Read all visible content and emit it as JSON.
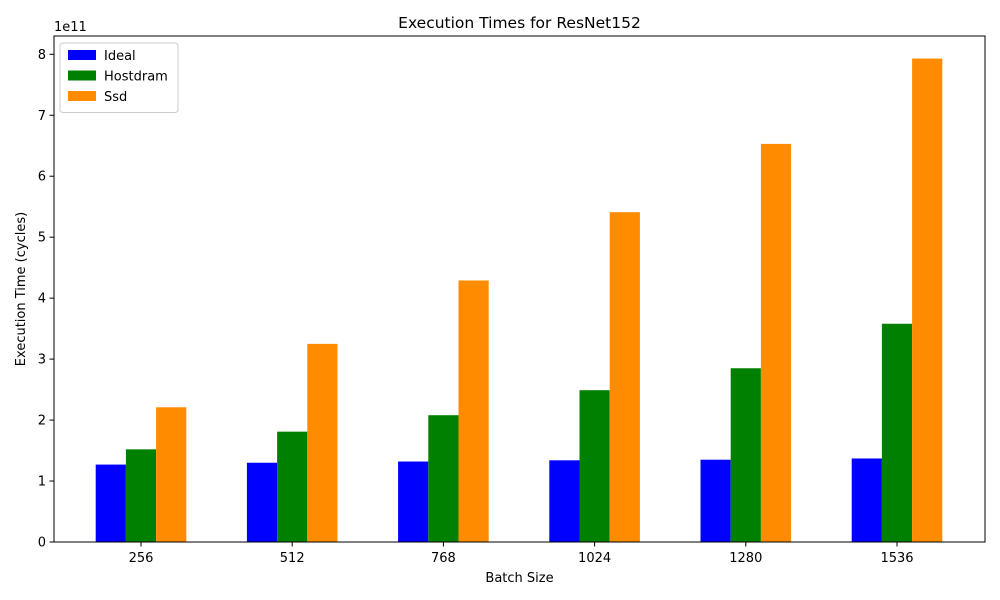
{
  "chart_data": {
    "type": "bar",
    "title": "Execution Times for ResNet152",
    "xlabel": "Batch Size",
    "ylabel": "Execution Time (cycles)",
    "y_offset_text": "1e11",
    "y_multiplier": 100000000000,
    "categories": [
      "256",
      "512",
      "768",
      "1024",
      "1280",
      "1536"
    ],
    "ylim": [
      0,
      8.3
    ],
    "yticks": [
      0,
      1,
      2,
      3,
      4,
      5,
      6,
      7,
      8
    ],
    "grid": false,
    "legend_position": "top-left",
    "series": [
      {
        "name": "Ideal",
        "color": "#0000ff",
        "values": [
          1.27,
          1.3,
          1.32,
          1.34,
          1.35,
          1.37
        ]
      },
      {
        "name": "Hostdram",
        "color": "#008000",
        "values": [
          1.52,
          1.81,
          2.08,
          2.49,
          2.85,
          3.58
        ]
      },
      {
        "name": "Ssd",
        "color": "#ff8c00",
        "values": [
          2.21,
          3.25,
          4.29,
          5.41,
          6.53,
          7.93
        ]
      }
    ]
  }
}
